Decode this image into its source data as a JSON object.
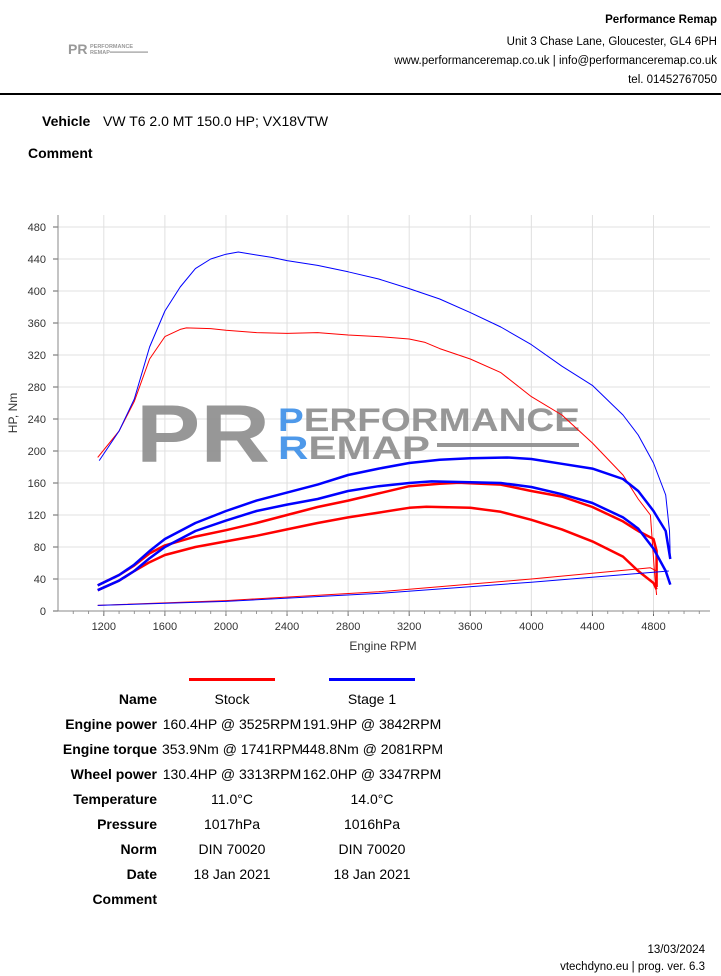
{
  "header": {
    "company": "Performance Remap",
    "address": "Unit 3 Chase Lane, Gloucester, GL4 6PH",
    "web_email": "www.performanceremap.co.uk | info@performanceremap.co.uk",
    "phone": "tel. 01452767050",
    "logo_text": "PR PERFORMANCE REMAP"
  },
  "vehicle": {
    "label": "Vehicle",
    "value": "VW T6 2.0 MT 150.0 HP; VX18VTW"
  },
  "comment": {
    "label": "Comment"
  },
  "colors": {
    "stock": "#ff0000",
    "stage1": "#0000ff",
    "grid": "#e0e0e0",
    "watermark_blue": "#3b8fe8",
    "watermark_gray": "#8c8c8c"
  },
  "chart_data": {
    "type": "line",
    "xlabel": "Engine RPM",
    "ylabel": "HP, Nm",
    "xlim": [
      900,
      5170
    ],
    "ylim": [
      0,
      495
    ],
    "xticks": [
      1200,
      1600,
      2000,
      2400,
      2800,
      3200,
      3600,
      4000,
      4400,
      4800
    ],
    "yticks": [
      0,
      40,
      80,
      120,
      160,
      200,
      240,
      280,
      320,
      360,
      400,
      440,
      480
    ],
    "grid": true,
    "series": [
      {
        "name": "Stock",
        "color": "#ff0000",
        "width": 1,
        "points": [
          [
            1160,
            192
          ],
          [
            1300,
            225
          ],
          [
            1400,
            262
          ],
          [
            1500,
            315
          ],
          [
            1600,
            343
          ],
          [
            1700,
            352
          ],
          [
            1741,
            353.9
          ],
          [
            1900,
            353
          ],
          [
            2000,
            351
          ],
          [
            2200,
            348
          ],
          [
            2400,
            347
          ],
          [
            2600,
            348
          ],
          [
            2800,
            345
          ],
          [
            3000,
            343
          ],
          [
            3200,
            340
          ],
          [
            3300,
            336
          ],
          [
            3400,
            328
          ],
          [
            3600,
            315
          ],
          [
            3800,
            298
          ],
          [
            4000,
            268
          ],
          [
            4200,
            245
          ],
          [
            4400,
            210
          ],
          [
            4600,
            170
          ],
          [
            4700,
            140
          ],
          [
            4780,
            120
          ],
          [
            4810,
            40
          ],
          [
            4820,
            20
          ]
        ]
      },
      {
        "name": "Stock",
        "color": "#ff0000",
        "width": 2.5,
        "points": [
          [
            1160,
            32
          ],
          [
            1300,
            45
          ],
          [
            1400,
            57
          ],
          [
            1500,
            72
          ],
          [
            1600,
            82
          ],
          [
            1800,
            93
          ],
          [
            2000,
            101
          ],
          [
            2200,
            110
          ],
          [
            2400,
            120
          ],
          [
            2600,
            130
          ],
          [
            2800,
            138
          ],
          [
            3000,
            147
          ],
          [
            3200,
            156
          ],
          [
            3400,
            159
          ],
          [
            3525,
            160.4
          ],
          [
            3800,
            158
          ],
          [
            4000,
            150
          ],
          [
            4200,
            143
          ],
          [
            4400,
            130
          ],
          [
            4600,
            112
          ],
          [
            4700,
            100
          ],
          [
            4800,
            90
          ],
          [
            4820,
            75
          ],
          [
            4820,
            30
          ]
        ]
      },
      {
        "name": "Stock",
        "color": "#ff0000",
        "width": 2.5,
        "points": [
          [
            1160,
            26
          ],
          [
            1300,
            38
          ],
          [
            1400,
            50
          ],
          [
            1500,
            61
          ],
          [
            1600,
            70
          ],
          [
            1800,
            80
          ],
          [
            2000,
            87
          ],
          [
            2200,
            94
          ],
          [
            2400,
            102
          ],
          [
            2600,
            110
          ],
          [
            2800,
            117
          ],
          [
            3000,
            123
          ],
          [
            3200,
            129
          ],
          [
            3313,
            130.4
          ],
          [
            3600,
            129
          ],
          [
            3800,
            124
          ],
          [
            4000,
            114
          ],
          [
            4200,
            102
          ],
          [
            4400,
            87
          ],
          [
            4600,
            68
          ],
          [
            4700,
            50
          ],
          [
            4800,
            35
          ],
          [
            4820,
            27
          ]
        ]
      },
      {
        "name": "Stock",
        "color": "#ff0000",
        "width": 1,
        "points": [
          [
            1160,
            7
          ],
          [
            2000,
            13
          ],
          [
            3000,
            24
          ],
          [
            4000,
            40
          ],
          [
            4780,
            54
          ],
          [
            4820,
            50
          ]
        ]
      },
      {
        "name": "Stage 1",
        "color": "#0000ff",
        "width": 1,
        "points": [
          [
            1170,
            188
          ],
          [
            1300,
            225
          ],
          [
            1400,
            265
          ],
          [
            1500,
            330
          ],
          [
            1600,
            375
          ],
          [
            1700,
            405
          ],
          [
            1800,
            428
          ],
          [
            1900,
            440
          ],
          [
            2000,
            446
          ],
          [
            2081,
            448.8
          ],
          [
            2200,
            445
          ],
          [
            2300,
            442
          ],
          [
            2400,
            438
          ],
          [
            2600,
            432
          ],
          [
            2800,
            424
          ],
          [
            3000,
            415
          ],
          [
            3200,
            403
          ],
          [
            3400,
            390
          ],
          [
            3600,
            373
          ],
          [
            3800,
            355
          ],
          [
            4000,
            333
          ],
          [
            4200,
            306
          ],
          [
            4400,
            282
          ],
          [
            4600,
            245
          ],
          [
            4700,
            220
          ],
          [
            4800,
            185
          ],
          [
            4880,
            145
          ],
          [
            4905,
            100
          ],
          [
            4910,
            65
          ]
        ]
      },
      {
        "name": "Stage 1",
        "color": "#0000ff",
        "width": 2.5,
        "points": [
          [
            1160,
            32
          ],
          [
            1300,
            45
          ],
          [
            1400,
            58
          ],
          [
            1500,
            75
          ],
          [
            1600,
            90
          ],
          [
            1800,
            110
          ],
          [
            2000,
            125
          ],
          [
            2200,
            138
          ],
          [
            2400,
            148
          ],
          [
            2600,
            158
          ],
          [
            2800,
            170
          ],
          [
            3000,
            178
          ],
          [
            3200,
            185
          ],
          [
            3400,
            189
          ],
          [
            3600,
            191
          ],
          [
            3842,
            191.9
          ],
          [
            4000,
            190
          ],
          [
            4200,
            184
          ],
          [
            4400,
            178
          ],
          [
            4600,
            165
          ],
          [
            4700,
            150
          ],
          [
            4800,
            125
          ],
          [
            4880,
            100
          ],
          [
            4910,
            65
          ]
        ]
      },
      {
        "name": "Stage 1",
        "color": "#0000ff",
        "width": 2.5,
        "points": [
          [
            1160,
            26
          ],
          [
            1300,
            38
          ],
          [
            1400,
            50
          ],
          [
            1500,
            66
          ],
          [
            1600,
            80
          ],
          [
            1800,
            100
          ],
          [
            2000,
            113
          ],
          [
            2200,
            125
          ],
          [
            2400,
            133
          ],
          [
            2600,
            140
          ],
          [
            2800,
            150
          ],
          [
            3000,
            156
          ],
          [
            3200,
            160
          ],
          [
            3347,
            162
          ],
          [
            3600,
            161
          ],
          [
            3800,
            160
          ],
          [
            4000,
            155
          ],
          [
            4200,
            146
          ],
          [
            4400,
            135
          ],
          [
            4600,
            117
          ],
          [
            4700,
            103
          ],
          [
            4800,
            78
          ],
          [
            4880,
            50
          ],
          [
            4910,
            33
          ]
        ]
      },
      {
        "name": "Stage 1",
        "color": "#0000ff",
        "width": 1,
        "points": [
          [
            1160,
            7
          ],
          [
            2000,
            12
          ],
          [
            3000,
            22
          ],
          [
            4000,
            36
          ],
          [
            4900,
            50
          ]
        ]
      }
    ]
  },
  "results": {
    "name_label": "Name",
    "rows": [
      {
        "label": "Engine power",
        "stock": "160.4HP @ 3525RPM",
        "stage1": "191.9HP @ 3842RPM"
      },
      {
        "label": "Engine torque",
        "stock": "353.9Nm @ 1741RPM",
        "stage1": "448.8Nm @ 2081RPM"
      },
      {
        "label": "Wheel power",
        "stock": "130.4HP @ 3313RPM",
        "stage1": "162.0HP @ 3347RPM"
      },
      {
        "label": "Temperature",
        "stock": "11.0°C",
        "stage1": "14.0°C"
      },
      {
        "label": "Pressure",
        "stock": "1017hPa",
        "stage1": "1016hPa"
      },
      {
        "label": "Norm",
        "stock": "DIN 70020",
        "stage1": "DIN 70020"
      },
      {
        "label": "Date",
        "stock": "18 Jan 2021",
        "stage1": "18 Jan 2021"
      },
      {
        "label": "Comment",
        "stock": "",
        "stage1": ""
      }
    ],
    "stock_name": "Stock",
    "stage1_name": "Stage 1"
  },
  "footer": {
    "date": "13/03/2024",
    "software": "vtechdyno.eu | prog. ver. 6.3"
  }
}
